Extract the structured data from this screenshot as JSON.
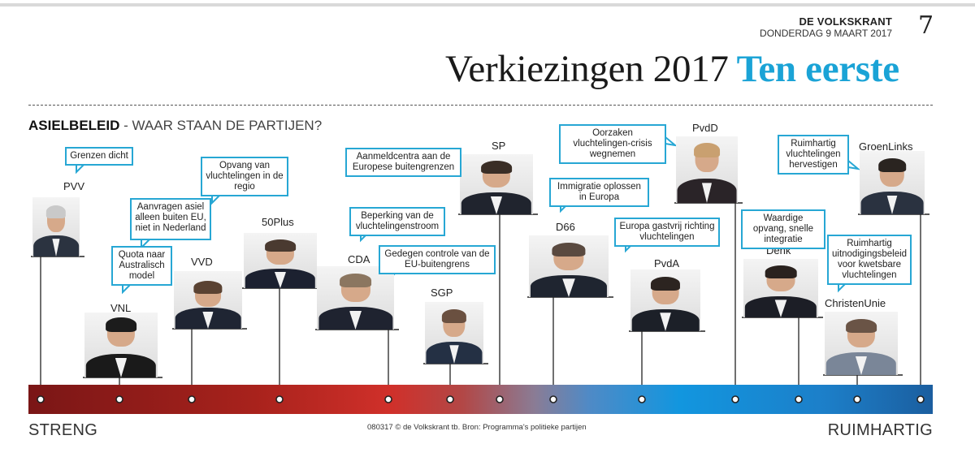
{
  "masthead": {
    "paper": "DE VOLKSKRANT",
    "date": "DONDERDAG 9 MAART 2017",
    "page_number": "7"
  },
  "headline": {
    "main": "Verkiezingen 2017",
    "accent": "Ten eerste"
  },
  "subtitle": {
    "strong": "ASIELBELEID",
    "rest": " - WAAR STAAN DE PARTIJEN?"
  },
  "scale": {
    "left": "STRENG",
    "right": "RUIMHARTIG"
  },
  "credit": "080317 © de Volkskrant  tb. Bron: Programma's politieke partijen",
  "colors": {
    "bubble_border": "#27a7d4",
    "accent": "#1aa3d6",
    "strict": "#a8221c",
    "open": "#1296df"
  },
  "parties": [
    {
      "id": "pvv",
      "name": "PVV",
      "statement": "Grenzen dicht"
    },
    {
      "id": "vnl",
      "name": "VNL",
      "statement": "Quota naar Australisch model"
    },
    {
      "id": "vvd",
      "name": "VVD",
      "statement": "Aanvragen asiel alleen buiten EU, niet in Nederland"
    },
    {
      "id": "50plus",
      "name": "50Plus",
      "statement": "Opvang van vluchtelingen in de regio"
    },
    {
      "id": "cda",
      "name": "CDA",
      "statement": "Beperking van de vluchtelingenstroom"
    },
    {
      "id": "sgp",
      "name": "SGP",
      "statement": "Gedegen controle van de EU-buitengrens"
    },
    {
      "id": "sp",
      "name": "SP",
      "statement": "Aanmeldcentra aan de Europese buitengrenzen"
    },
    {
      "id": "d66",
      "name": "D66",
      "statement": "Immigratie oplossen in Europa"
    },
    {
      "id": "pvda",
      "name": "PvdA",
      "statement": "Europa gastvrij richting vluchtelingen"
    },
    {
      "id": "pvdd",
      "name": "PvdD",
      "statement": "Oorzaken vluchtelingen-crisis wegnemen"
    },
    {
      "id": "denk",
      "name": "Denk",
      "statement": "Waardige opvang, snelle integratie"
    },
    {
      "id": "christenunie",
      "name": "ChristenUnie",
      "statement": "Ruimhartig uitnodigingsbeleid voor kwetsbare vluchtelingen"
    },
    {
      "id": "groenlinks",
      "name": "GroenLinks",
      "statement": "Ruimhartig vluchtelingen hervestigen"
    }
  ]
}
